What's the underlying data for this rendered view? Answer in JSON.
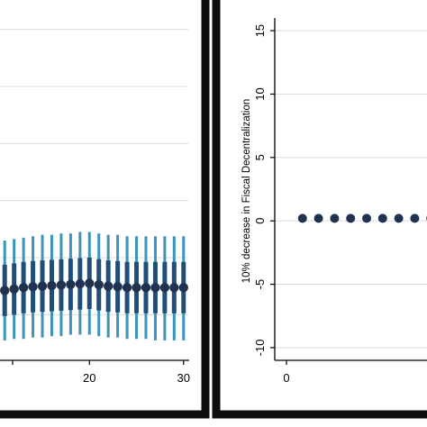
{
  "chart_data": [
    {
      "type": "scatter",
      "title": "",
      "xlabel": "",
      "ylabel": "",
      "x_ticks": [
        "20",
        "30"
      ],
      "xlim": [
        10.5,
        30.5
      ],
      "ylim": [
        -3.6,
        8.4
      ],
      "grid": true,
      "colors": {
        "frame": "#0d0d0d",
        "point": "#1f3250",
        "ci_inner": "#1f4e79",
        "ci_outer": "#3d93b8",
        "grid": "#dcdcdc"
      },
      "series": [
        {
          "x": [
            10,
            11,
            12,
            13,
            14,
            15,
            16,
            17,
            18,
            19,
            20,
            21,
            22,
            23,
            24,
            25,
            26,
            27,
            28,
            29,
            30
          ],
          "values": [
            -1.2,
            -1.15,
            -1.1,
            -1.05,
            -1.02,
            -1.0,
            -0.98,
            -0.96,
            -0.94,
            -0.92,
            -0.9,
            -0.95,
            -1.0,
            -1.02,
            -1.05,
            -1.05,
            -1.05,
            -1.05,
            -1.05,
            -1.05,
            -1.05
          ],
          "ci95": [
            [
              -2.9,
              0.5
            ],
            [
              -2.9,
              0.6
            ],
            [
              -2.85,
              0.65
            ],
            [
              -2.85,
              0.7
            ],
            [
              -2.8,
              0.75
            ],
            [
              -2.8,
              0.8
            ],
            [
              -2.75,
              0.8
            ],
            [
              -2.75,
              0.85
            ],
            [
              -2.7,
              0.85
            ],
            [
              -2.7,
              0.9
            ],
            [
              -2.7,
              0.9
            ],
            [
              -2.75,
              0.85
            ],
            [
              -2.8,
              0.8
            ],
            [
              -2.8,
              0.8
            ],
            [
              -2.85,
              0.75
            ],
            [
              -2.85,
              0.75
            ],
            [
              -2.85,
              0.75
            ],
            [
              -2.9,
              0.75
            ],
            [
              -2.9,
              0.75
            ],
            [
              -2.9,
              0.75
            ],
            [
              -2.9,
              0.75
            ]
          ],
          "ci90": [
            [
              -2.1,
              -0.3
            ],
            [
              -2.05,
              -0.25
            ],
            [
              -2.0,
              -0.2
            ],
            [
              -1.95,
              -0.15
            ],
            [
              -1.92,
              -0.12
            ],
            [
              -1.9,
              -0.1
            ],
            [
              -1.88,
              -0.08
            ],
            [
              -1.86,
              -0.06
            ],
            [
              -1.84,
              -0.04
            ],
            [
              -1.82,
              -0.02
            ],
            [
              -1.8,
              0.0
            ],
            [
              -1.85,
              -0.05
            ],
            [
              -1.9,
              -0.1
            ],
            [
              -1.92,
              -0.12
            ],
            [
              -1.95,
              -0.15
            ],
            [
              -1.95,
              -0.15
            ],
            [
              -1.95,
              -0.15
            ],
            [
              -1.95,
              -0.15
            ],
            [
              -1.95,
              -0.15
            ],
            [
              -1.95,
              -0.15
            ],
            [
              -1.95,
              -0.15
            ]
          ]
        }
      ]
    },
    {
      "type": "scatter",
      "title": "",
      "xlabel": "",
      "ylabel": "10% decrease in Fiscal Decentralization",
      "x_ticks": [
        "0"
      ],
      "y_ticks": [
        "15",
        "10",
        "5",
        "0",
        "-5",
        "-10"
      ],
      "xlim": [
        -0.5,
        9.5
      ],
      "ylim": [
        -11,
        16
      ],
      "grid": true,
      "colors": {
        "frame": "#0d0d0d",
        "point": "#1f3250",
        "grid": "#dcdcdc"
      },
      "series": [
        {
          "x": [
            1,
            2,
            3,
            4,
            5,
            6,
            7,
            8,
            9
          ],
          "values": [
            0.2,
            0.2,
            0.2,
            0.2,
            0.2,
            0.2,
            0.2,
            0.2,
            0.2
          ]
        }
      ]
    }
  ]
}
